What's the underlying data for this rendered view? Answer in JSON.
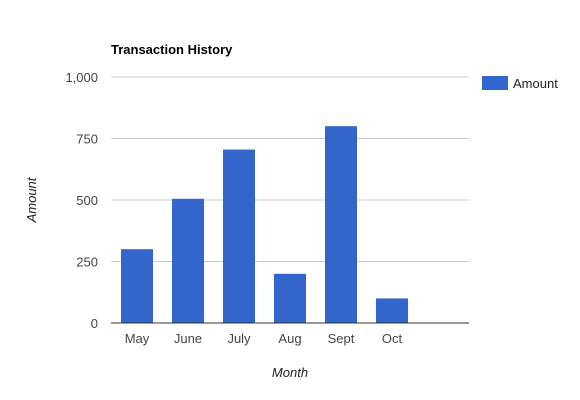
{
  "chart_data": {
    "type": "bar",
    "title": "Transaction History",
    "xlabel": "Month",
    "ylabel": "Amount",
    "categories": [
      "May",
      "June",
      "July",
      "Aug",
      "Sept",
      "Oct"
    ],
    "series": [
      {
        "name": "Amount",
        "color": "#3366cc",
        "values": [
          300,
          505,
          705,
          200,
          800,
          100
        ]
      }
    ],
    "ylim": [
      0,
      1000
    ],
    "yticks": [
      0,
      250,
      500,
      750,
      1000
    ],
    "ytick_labels": [
      "0",
      "250",
      "500",
      "750",
      "1,000"
    ],
    "grid": true,
    "legend_position": "right"
  }
}
